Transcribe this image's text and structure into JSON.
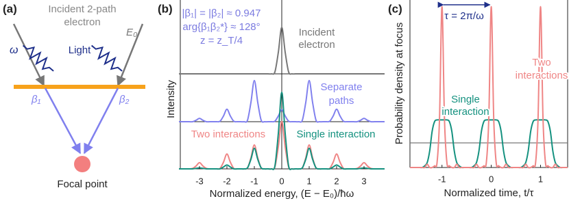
{
  "panel_labels": [
    "(a)",
    "(b)",
    "(c)"
  ],
  "diagram": {
    "title_lines": [
      "Incident 2-path",
      "electron"
    ],
    "energy": "E₀",
    "frequency": "ω",
    "light": "Light",
    "beta1": "β₁",
    "beta2": "β₂",
    "focal_point": "Focal point"
  },
  "chart_data": [
    {
      "type": "line",
      "xlim": [
        -3.7,
        3.7
      ],
      "ylim": [
        0,
        1
      ],
      "x": [
        -3.75,
        -3.625,
        -3.5,
        -3.375,
        -3.25,
        -3.125,
        -3,
        -2.875,
        -2.75,
        -2.625,
        -2.5,
        -2.375,
        -2.25,
        -2.125,
        -2,
        -1.875,
        -1.75,
        -1.625,
        -1.5,
        -1.375,
        -1.25,
        -1.125,
        -1,
        -0.875,
        -0.75,
        -0.625,
        -0.5,
        -0.375,
        -0.25,
        -0.125,
        0,
        0.125,
        0.25,
        0.375,
        0.5,
        0.625,
        0.75,
        0.875,
        1,
        1.125,
        1.25,
        1.375,
        1.5,
        1.625,
        1.75,
        1.875,
        2,
        2.125,
        2.25,
        2.375,
        2.5,
        2.625,
        2.75,
        2.875,
        3,
        3.125,
        3.25,
        3.375,
        3.5,
        3.625,
        3.75
      ],
      "series": [
        {
          "color": "#777777",
          "values": [
            0,
            0,
            0,
            0,
            0,
            0,
            0,
            0,
            0,
            0,
            0,
            0,
            0,
            0,
            0,
            0,
            0,
            0,
            0,
            0,
            0,
            0,
            0,
            0,
            0,
            0,
            0,
            0,
            0.04,
            0.45,
            0.97,
            0.45,
            0.04,
            0,
            0,
            0,
            0,
            0,
            0,
            0,
            0,
            0,
            0,
            0,
            0,
            0,
            0,
            0,
            0,
            0,
            0,
            0,
            0,
            0,
            0,
            0,
            0,
            0,
            0,
            0,
            0
          ]
        }
      ],
      "annotations": [
        {
          "color": "#7b7be0",
          "lines": [
            "|β₁| = |β₂| ≈ 0.947",
            "arg{β₁β₂*} ≈ 128°",
            "z = z_T/4"
          ]
        },
        {
          "color": "#777777",
          "lines": [
            "Incident",
            "electron"
          ]
        }
      ]
    },
    {
      "type": "line",
      "xlim": [
        -3.7,
        3.7
      ],
      "ylim": [
        0,
        1
      ],
      "y_label": "Intensity",
      "x": [
        -3.75,
        -3.625,
        -3.5,
        -3.375,
        -3.25,
        -3.125,
        -3,
        -2.875,
        -2.75,
        -2.625,
        -2.5,
        -2.375,
        -2.25,
        -2.125,
        -2,
        -1.875,
        -1.75,
        -1.625,
        -1.5,
        -1.375,
        -1.25,
        -1.125,
        -1,
        -0.875,
        -0.75,
        -0.625,
        -0.5,
        -0.375,
        -0.25,
        -0.125,
        0,
        0.125,
        0.25,
        0.375,
        0.5,
        0.625,
        0.75,
        0.875,
        1,
        1.125,
        1.25,
        1.375,
        1.5,
        1.625,
        1.75,
        1.875,
        2,
        2.125,
        2.25,
        2.375,
        2.5,
        2.625,
        2.75,
        2.875,
        3,
        3.125,
        3.25,
        3.375,
        3.5,
        3.625,
        3.75
      ],
      "series": [
        {
          "color": "#8080ee",
          "values": [
            0,
            0,
            0,
            0,
            0,
            0.03,
            0.07,
            0.03,
            0,
            0,
            0,
            0,
            0.01,
            0.12,
            0.26,
            0.12,
            0.01,
            0,
            0,
            0,
            0.03,
            0.4,
            0.86,
            0.4,
            0.03,
            0,
            0,
            0,
            0.01,
            0.12,
            0.25,
            0.12,
            0.01,
            0,
            0,
            0,
            0.03,
            0.4,
            0.86,
            0.4,
            0.03,
            0,
            0,
            0,
            0.01,
            0.12,
            0.26,
            0.12,
            0.01,
            0,
            0,
            0,
            0,
            0.03,
            0.07,
            0.03,
            0,
            0,
            0,
            0,
            0
          ]
        }
      ],
      "annotations": [
        {
          "color": "#8080ee",
          "lines": [
            "Separate",
            "paths"
          ]
        }
      ]
    },
    {
      "type": "line",
      "xlim": [
        -3.7,
        3.7
      ],
      "ylim": [
        0,
        1
      ],
      "xticks": [
        -3,
        -2,
        -1,
        0,
        1,
        2,
        3
      ],
      "x_label": "Normalized energy, (E − E₀)/ħω",
      "x": [
        -3.75,
        -3.625,
        -3.5,
        -3.375,
        -3.25,
        -3.125,
        -3,
        -2.875,
        -2.75,
        -2.625,
        -2.5,
        -2.375,
        -2.25,
        -2.125,
        -2,
        -1.875,
        -1.75,
        -1.625,
        -1.5,
        -1.375,
        -1.25,
        -1.125,
        -1,
        -0.875,
        -0.75,
        -0.625,
        -0.5,
        -0.375,
        -0.25,
        -0.125,
        0,
        0.125,
        0.25,
        0.375,
        0.5,
        0.625,
        0.75,
        0.875,
        1,
        1.125,
        1.25,
        1.375,
        1.5,
        1.625,
        1.75,
        1.875,
        2,
        2.125,
        2.25,
        2.375,
        2.5,
        2.625,
        2.75,
        2.875,
        3,
        3.125,
        3.25,
        3.375,
        3.5,
        3.625,
        3.75
      ],
      "series": [
        {
          "color": "#ef8585",
          "values": [
            0,
            0,
            0,
            0,
            0.01,
            0.06,
            0.13,
            0.06,
            0.01,
            0,
            0,
            0,
            0.01,
            0.14,
            0.31,
            0.14,
            0.01,
            0,
            0,
            0,
            0.02,
            0.23,
            0.5,
            0.23,
            0.02,
            0,
            0,
            0,
            0.04,
            0.46,
            0.99,
            0.46,
            0.04,
            0,
            0,
            0,
            0.02,
            0.23,
            0.5,
            0.23,
            0.02,
            0,
            0,
            0,
            0.01,
            0.14,
            0.31,
            0.14,
            0.01,
            0,
            0,
            0,
            0.01,
            0.06,
            0.13,
            0.06,
            0.01,
            0,
            0,
            0,
            0
          ]
        },
        {
          "color": "#14917f",
          "values": [
            0,
            0,
            0,
            0,
            0,
            0.01,
            0.02,
            0.01,
            0,
            0,
            0,
            0,
            0,
            0.04,
            0.08,
            0.04,
            0,
            0,
            0,
            0,
            0.02,
            0.2,
            0.43,
            0.2,
            0.02,
            0,
            0,
            0,
            0.06,
            0.74,
            1.6,
            0.74,
            0.06,
            0,
            0,
            0,
            0.02,
            0.2,
            0.43,
            0.2,
            0.02,
            0,
            0,
            0,
            0,
            0.04,
            0.08,
            0.04,
            0,
            0,
            0,
            0,
            0,
            0.01,
            0.02,
            0.01,
            0,
            0,
            0,
            0,
            0
          ]
        }
      ],
      "annotations": [
        {
          "color": "#ef8585",
          "lines": [
            "Two interactions"
          ]
        },
        {
          "color": "#14917f",
          "lines": [
            "Single interaction"
          ]
        }
      ]
    },
    {
      "type": "line",
      "xlim": [
        -1.65,
        1.55
      ],
      "ylim": [
        0,
        1
      ],
      "xticks": [
        -1,
        0,
        1
      ],
      "x_label": "Normalized time, t/τ",
      "y_label": "Probability density at focus",
      "reference_line": {
        "value": 0.15,
        "color": "#777777"
      },
      "x": [
        -1.65,
        -1.6,
        -1.55,
        -1.5,
        -1.45,
        -1.4,
        -1.35,
        -1.3,
        -1.25,
        -1.2,
        -1.15,
        -1.1,
        -1.05,
        -1,
        -0.95,
        -0.9,
        -0.85,
        -0.8,
        -0.75,
        -0.7,
        -0.65,
        -0.6,
        -0.55,
        -0.5,
        -0.45,
        -0.4,
        -0.35,
        -0.3,
        -0.25,
        -0.2,
        -0.15,
        -0.1,
        -0.05,
        0,
        0.05,
        0.1,
        0.15,
        0.2,
        0.25,
        0.3,
        0.35,
        0.4,
        0.45,
        0.5,
        0.55,
        0.6,
        0.65,
        0.7,
        0.75,
        0.8,
        0.85,
        0.9,
        0.95,
        1,
        1.05,
        1.1,
        1.15,
        1.2,
        1.25,
        1.3,
        1.35,
        1.4,
        1.45,
        1.5,
        1.55
      ],
      "series": [
        {
          "color": "#14917f",
          "values": [
            0,
            0,
            0,
            0,
            0,
            0,
            0.01,
            0.03,
            0.1,
            0.22,
            0.28,
            0.29,
            0.29,
            0.29,
            0.29,
            0.29,
            0.28,
            0.22,
            0.1,
            0.03,
            0.01,
            0,
            0,
            0,
            0,
            0,
            0.01,
            0.03,
            0.1,
            0.22,
            0.28,
            0.29,
            0.29,
            0.29,
            0.29,
            0.29,
            0.28,
            0.22,
            0.1,
            0.03,
            0.01,
            0,
            0,
            0,
            0,
            0,
            0.01,
            0.03,
            0.1,
            0.22,
            0.28,
            0.29,
            0.29,
            0.29,
            0.29,
            0.29,
            0.28,
            0.22,
            0.1,
            0.03,
            0.01,
            0,
            0,
            0,
            0
          ]
        },
        {
          "color": "#ef8585",
          "values": [
            0,
            0,
            0,
            0,
            0,
            0,
            0,
            0.02,
            0,
            0,
            0.01,
            0.03,
            0.3,
            0.98,
            0.3,
            0.03,
            0.01,
            0,
            0,
            0.02,
            0,
            0,
            0,
            0,
            0,
            0,
            0,
            0.02,
            0,
            0,
            0.01,
            0.03,
            0.3,
            0.98,
            0.3,
            0.03,
            0.01,
            0,
            0,
            0.02,
            0,
            0,
            0,
            0,
            0,
            0,
            0,
            0.02,
            0,
            0,
            0.01,
            0.03,
            0.3,
            0.98,
            0.3,
            0.03,
            0.01,
            0,
            0,
            0.02,
            0,
            0,
            0,
            0,
            0
          ]
        }
      ],
      "annotations": [
        {
          "color": "#1e2f8a",
          "lines": [
            "τ = 2π/ω"
          ]
        },
        {
          "color": "#ef8585",
          "lines": [
            "Two",
            "interactions"
          ]
        },
        {
          "color": "#14917f",
          "lines": [
            "Single",
            "interaction"
          ]
        }
      ]
    }
  ]
}
